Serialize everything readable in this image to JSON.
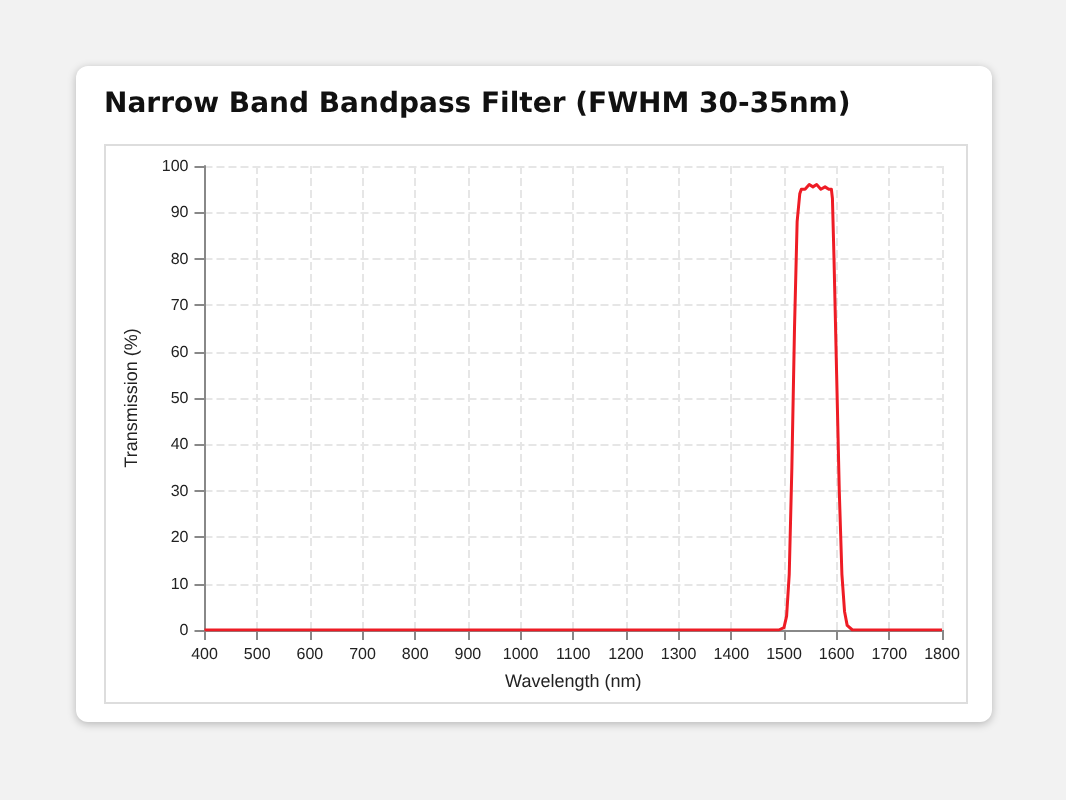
{
  "chart_data": {
    "type": "line",
    "title": "Narrow Band Bandpass Filter (FWHM 30-35nm)",
    "xlabel": "Wavelength (nm)",
    "ylabel": "Transmission (%)",
    "series": [
      {
        "color": "#ee1c25",
        "x": [
          400,
          1400,
          1490,
          1500,
          1505,
          1510,
          1515,
          1520,
          1525,
          1530,
          1533,
          1540,
          1548,
          1555,
          1562,
          1570,
          1578,
          1585,
          1590,
          1592,
          1595,
          1600,
          1605,
          1610,
          1615,
          1620,
          1630,
          1650,
          1800
        ],
        "values": [
          0,
          0,
          0,
          0.5,
          3,
          12,
          35,
          65,
          88,
          94,
          95,
          95,
          96,
          95.5,
          96,
          95,
          95.5,
          95,
          95,
          93,
          80,
          55,
          30,
          12,
          4,
          1,
          0,
          0,
          0
        ]
      }
    ],
    "xlim": [
      400,
      1800
    ],
    "xticks": [
      400,
      500,
      600,
      700,
      800,
      900,
      1000,
      1100,
      1200,
      1300,
      1400,
      1500,
      1600,
      1700,
      1800
    ],
    "ylim": [
      0,
      100
    ],
    "yticks": [
      0,
      10,
      20,
      30,
      40,
      50,
      60,
      70,
      80,
      90,
      100
    ],
    "grid": true,
    "marker": "none",
    "line_style": "solid"
  }
}
